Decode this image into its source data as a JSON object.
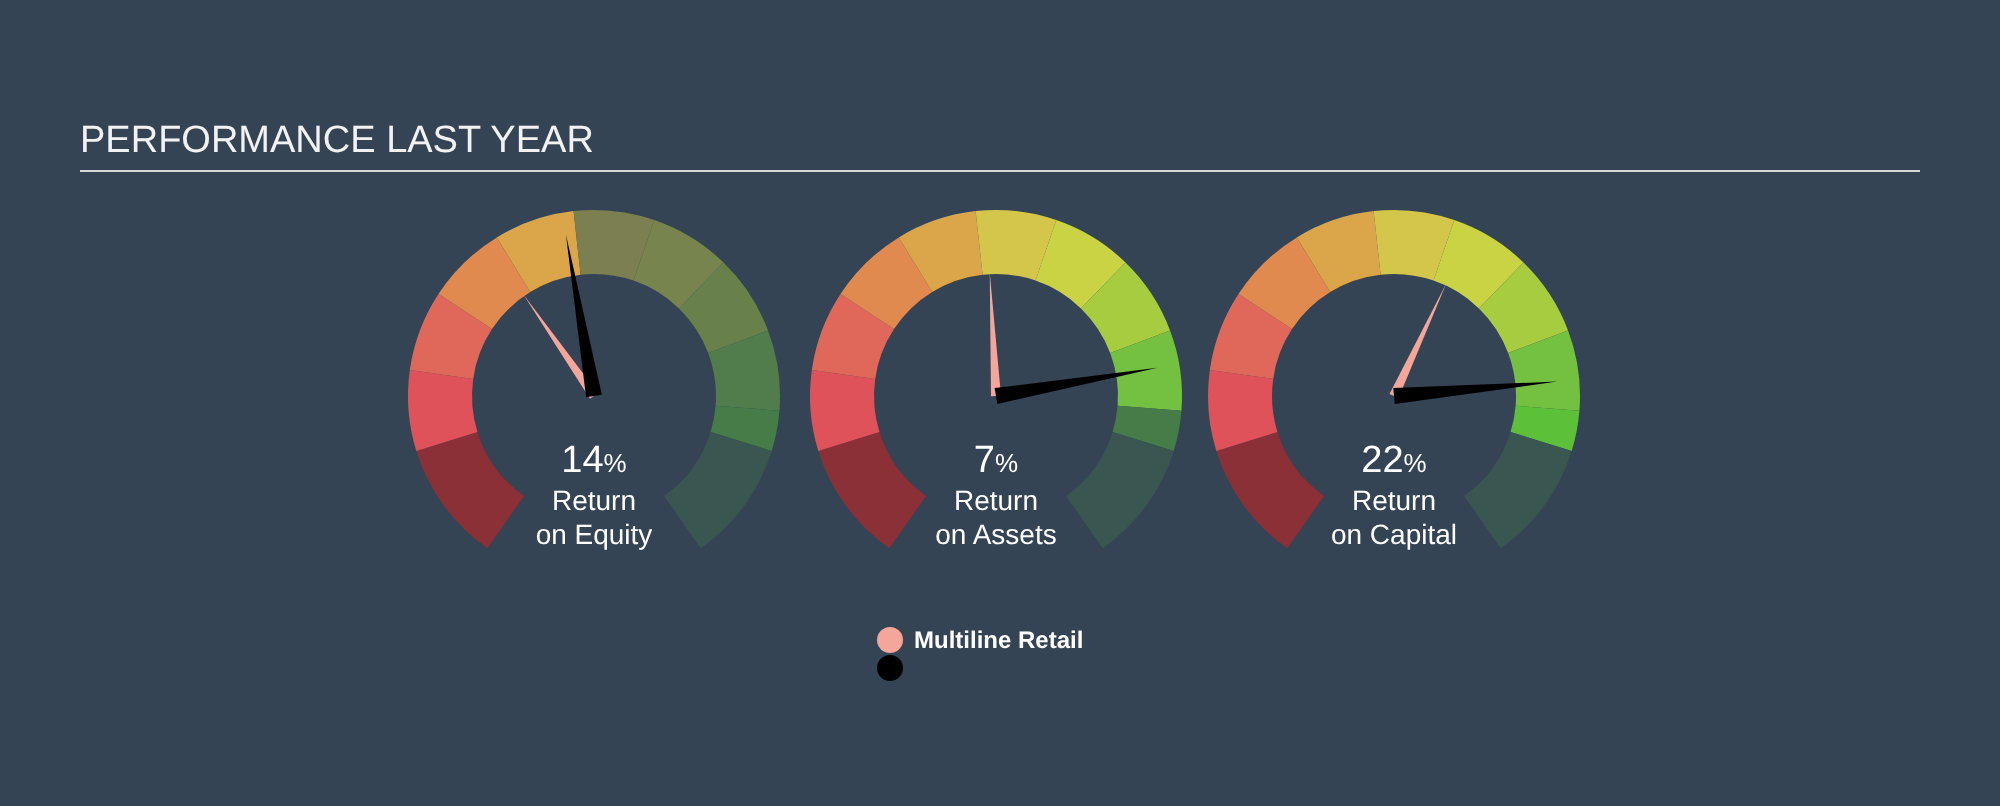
{
  "chart_data": [
    {
      "type": "other",
      "title": "PERFORMANCE LAST YEAR",
      "categories": [
        "Return on Equity"
      ],
      "series": [
        {
          "color": "#f4a69a",
          "values": [
            null
          ]
        },
        {
          "color": "#000000",
          "values": [
            14
          ],
          "value_labels": [
            "14%"
          ]
        }
      ]
    },
    {
      "type": "other",
      "categories": [
        "Return on Assets"
      ],
      "legend": "bottom",
      "series": [
        {
          "name": "Multiline Retail",
          "color": "#f4a69a",
          "values": [
            null
          ]
        },
        {
          "color": "#000000",
          "values": [
            7
          ],
          "value_labels": [
            "7%"
          ]
        }
      ]
    },
    {
      "type": "other",
      "categories": [
        "Return on Capital"
      ],
      "series": [
        {
          "color": "#f4a69a",
          "values": [
            null
          ]
        },
        {
          "color": "#000000",
          "values": [
            22
          ],
          "value_labels": [
            "22%"
          ]
        }
      ]
    }
  ]
}
